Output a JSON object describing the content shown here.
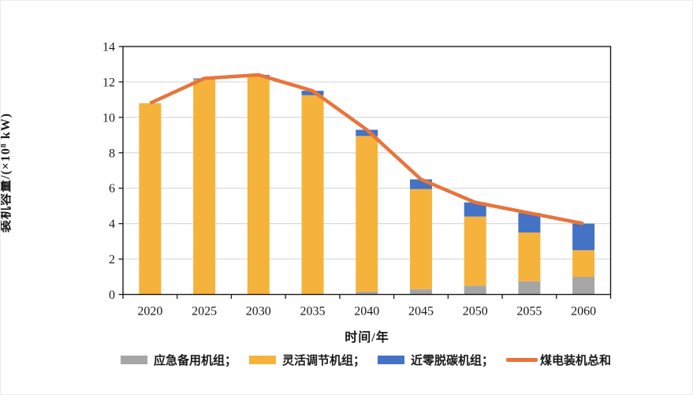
{
  "chart_data": {
    "type": "bar",
    "stacked": true,
    "title": "",
    "xlabel": "时间/年",
    "ylabel": "装机容量/(×10⁸ kW)",
    "categories": [
      "2020",
      "2025",
      "2030",
      "2035",
      "2040",
      "2045",
      "2050",
      "2055",
      "2060"
    ],
    "series": [
      {
        "name": "应急备用机组",
        "type": "bar",
        "color": "#A6A6A6",
        "values": [
          0,
          0,
          0,
          0,
          0.15,
          0.3,
          0.5,
          0.75,
          1.0
        ]
      },
      {
        "name": "灵活调节机组",
        "type": "bar",
        "color": "#F6B33C",
        "values": [
          10.8,
          12.15,
          12.3,
          11.25,
          8.8,
          5.65,
          3.9,
          2.75,
          1.5
        ]
      },
      {
        "name": "近零脱碳机组",
        "type": "bar",
        "color": "#4472C4",
        "values": [
          0,
          0.05,
          0.1,
          0.25,
          0.35,
          0.55,
          0.8,
          1.1,
          1.5
        ]
      },
      {
        "name": "煤电装机总和",
        "type": "line",
        "color": "#E8743C",
        "values": [
          10.8,
          12.2,
          12.4,
          11.5,
          9.3,
          6.5,
          5.2,
          4.6,
          4.0
        ]
      }
    ],
    "ylim": [
      0,
      14
    ],
    "yticks": [
      0,
      2,
      4,
      6,
      8,
      10,
      12,
      14
    ],
    "grid": true,
    "legend_position": "bottom",
    "legend_labels": [
      "应急备用机组；",
      "灵活调节机组；",
      "近零脱碳机组；",
      "煤电装机总和"
    ]
  },
  "colors": {
    "gridline": "#D9D9D9",
    "axis": "#1A1A1A",
    "text": "#1A1A1A",
    "background": "#FFFFFF"
  }
}
